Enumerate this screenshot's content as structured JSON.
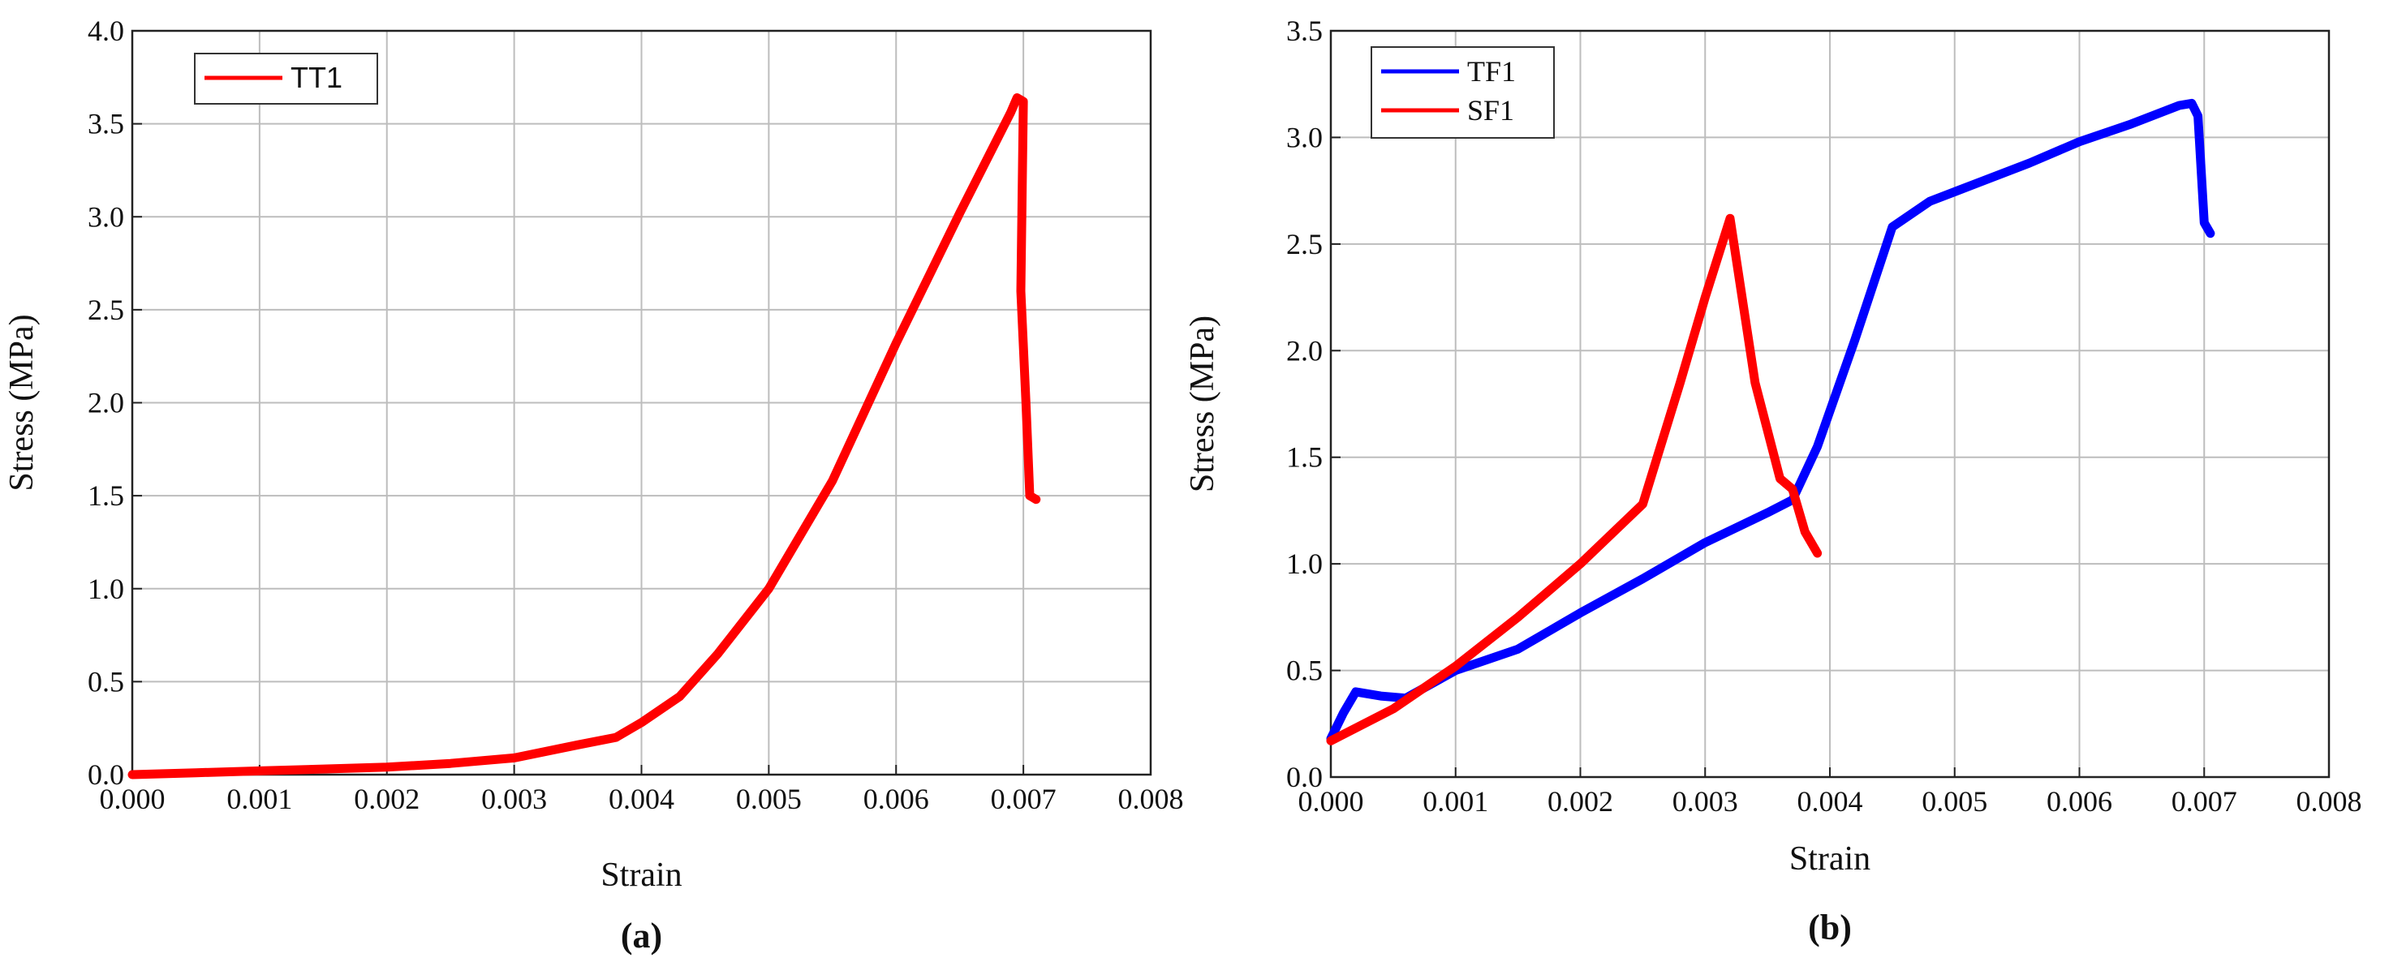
{
  "chart_data": [
    {
      "type": "line",
      "panel_label": "(a)",
      "xlabel": "Strain",
      "ylabel": "Stress (MPa)",
      "xlim": [
        0.0,
        0.008
      ],
      "ylim": [
        0.0,
        4.0
      ],
      "xticks": [
        "0.000",
        "0.001",
        "0.002",
        "0.003",
        "0.004",
        "0.005",
        "0.006",
        "0.007",
        "0.008"
      ],
      "yticks": [
        "0.0",
        "0.5",
        "1.0",
        "1.5",
        "2.0",
        "2.5",
        "3.0",
        "3.5",
        "4.0"
      ],
      "grid": true,
      "legend_position": "top-left",
      "series": [
        {
          "name": "TT1",
          "color": "#ff0000",
          "points": [
            [
              0.0,
              0.0
            ],
            [
              0.0005,
              0.01
            ],
            [
              0.001,
              0.02
            ],
            [
              0.0015,
              0.03
            ],
            [
              0.002,
              0.04
            ],
            [
              0.0025,
              0.06
            ],
            [
              0.003,
              0.09
            ],
            [
              0.0035,
              0.16
            ],
            [
              0.0038,
              0.2
            ],
            [
              0.004,
              0.28
            ],
            [
              0.0043,
              0.42
            ],
            [
              0.0046,
              0.65
            ],
            [
              0.005,
              1.0
            ],
            [
              0.0055,
              1.58
            ],
            [
              0.006,
              2.32
            ],
            [
              0.0065,
              3.02
            ],
            [
              0.0069,
              3.56
            ],
            [
              0.00695,
              3.64
            ],
            [
              0.007,
              3.62
            ],
            [
              0.00698,
              2.6
            ],
            [
              0.00702,
              2.0
            ],
            [
              0.00705,
              1.5
            ],
            [
              0.0071,
              1.48
            ]
          ]
        }
      ]
    },
    {
      "type": "line",
      "panel_label": "(b)",
      "xlabel": "Strain",
      "ylabel": "Stress (MPa)",
      "xlim": [
        0.0,
        0.008
      ],
      "ylim": [
        0.0,
        3.5
      ],
      "xticks": [
        "0.000",
        "0.001",
        "0.002",
        "0.003",
        "0.004",
        "0.005",
        "0.006",
        "0.007",
        "0.008"
      ],
      "yticks": [
        "0.0",
        "0.5",
        "1.0",
        "1.5",
        "2.0",
        "2.5",
        "3.0",
        "3.5"
      ],
      "grid": true,
      "legend_position": "top-left",
      "series": [
        {
          "name": "TF1",
          "color": "#0000ff",
          "points": [
            [
              0.0,
              0.18
            ],
            [
              0.0001,
              0.3
            ],
            [
              0.0002,
              0.4
            ],
            [
              0.0004,
              0.38
            ],
            [
              0.0006,
              0.37
            ],
            [
              0.001,
              0.5
            ],
            [
              0.0015,
              0.6
            ],
            [
              0.002,
              0.77
            ],
            [
              0.0025,
              0.93
            ],
            [
              0.003,
              1.1
            ],
            [
              0.0035,
              1.24
            ],
            [
              0.0037,
              1.3
            ],
            [
              0.0039,
              1.55
            ],
            [
              0.0042,
              2.05
            ],
            [
              0.0045,
              2.58
            ],
            [
              0.0048,
              2.7
            ],
            [
              0.0052,
              2.79
            ],
            [
              0.0056,
              2.88
            ],
            [
              0.006,
              2.98
            ],
            [
              0.0064,
              3.06
            ],
            [
              0.0068,
              3.15
            ],
            [
              0.0069,
              3.16
            ],
            [
              0.00695,
              3.1
            ],
            [
              0.007,
              2.6
            ],
            [
              0.00705,
              2.55
            ]
          ]
        },
        {
          "name": "SF1",
          "color": "#ff0000",
          "points": [
            [
              0.0,
              0.17
            ],
            [
              0.0005,
              0.32
            ],
            [
              0.001,
              0.52
            ],
            [
              0.0015,
              0.75
            ],
            [
              0.002,
              1.0
            ],
            [
              0.0025,
              1.28
            ],
            [
              0.0028,
              1.85
            ],
            [
              0.003,
              2.25
            ],
            [
              0.0032,
              2.62
            ],
            [
              0.0034,
              1.85
            ],
            [
              0.0036,
              1.4
            ],
            [
              0.0037,
              1.35
            ],
            [
              0.0038,
              1.15
            ],
            [
              0.0039,
              1.05
            ]
          ]
        }
      ]
    }
  ]
}
